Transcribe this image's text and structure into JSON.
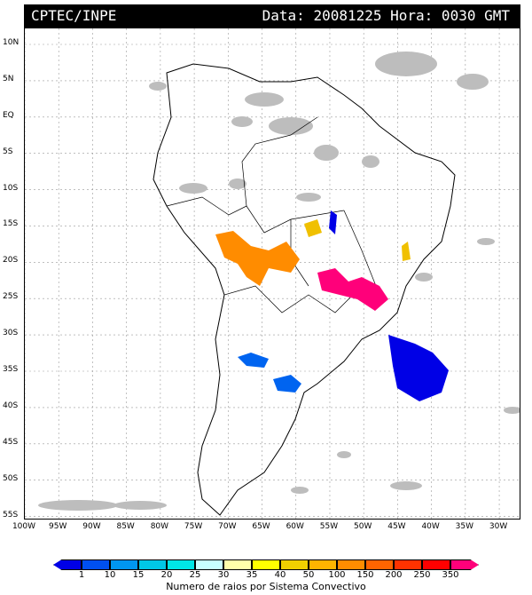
{
  "header": {
    "source": "CPTEC/INPE",
    "datetime": "Data: 20081225 Hora: 0030 GMT"
  },
  "lat_labels": [
    "10N",
    "5N",
    "EQ",
    "5S",
    "10S",
    "15S",
    "20S",
    "25S",
    "30S",
    "35S",
    "40S",
    "45S",
    "50S",
    "55S"
  ],
  "lon_labels": [
    "100W",
    "95W",
    "90W",
    "85W",
    "80W",
    "75W",
    "70W",
    "65W",
    "60W",
    "55W",
    "50W",
    "45W",
    "40W",
    "35W",
    "30W"
  ],
  "legend": {
    "ticks": [
      "1",
      "10",
      "15",
      "20",
      "25",
      "30",
      "35",
      "40",
      "50",
      "100",
      "150",
      "200",
      "250",
      "350"
    ],
    "colors": [
      "#0000e6",
      "#0050f0",
      "#0096f0",
      "#00c8e6",
      "#00e6e6",
      "#c8ffff",
      "#ffffaa",
      "#ffff00",
      "#f0d000",
      "#ffb400",
      "#ff8c00",
      "#ff6400",
      "#ff3200",
      "#ff0000",
      "#ff007a"
    ],
    "title": "Numero de raios por Sistema Convectivo"
  },
  "systems": [
    {
      "color": "#ff8c00",
      "name": "orange-cluster"
    },
    {
      "color": "#ff007a",
      "name": "magenta-cluster"
    },
    {
      "color": "#0000e6",
      "name": "blue-cluster"
    },
    {
      "color": "#0064f0",
      "name": "mid-blue-cluster"
    },
    {
      "color": "#f0c000",
      "name": "yellow-cluster"
    }
  ]
}
